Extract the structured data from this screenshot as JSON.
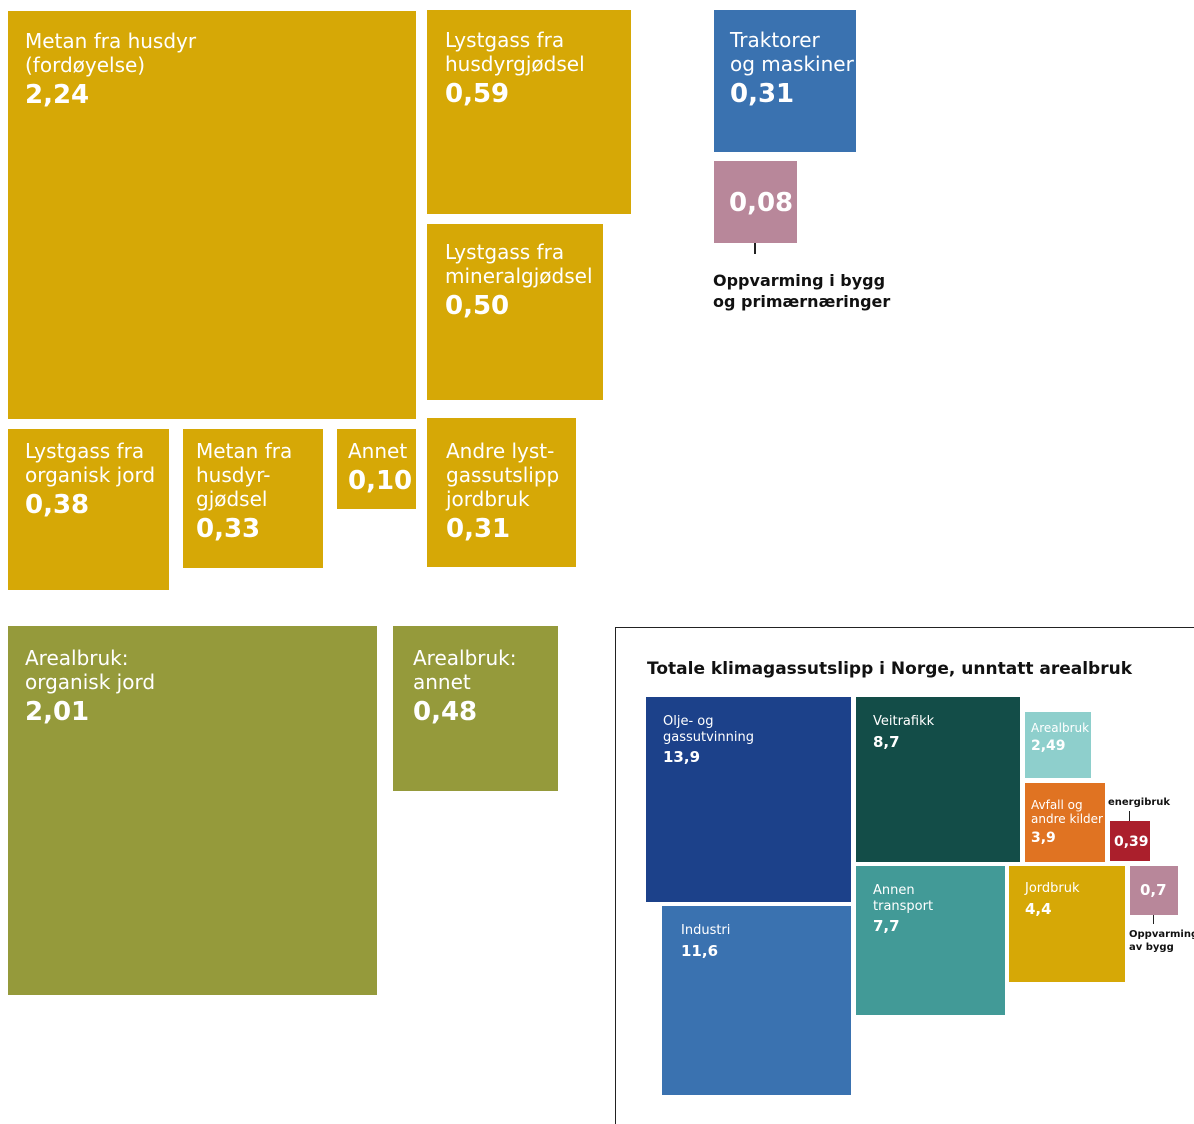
{
  "boxes": [
    {
      "label": [
        "Metan fra husdyr",
        "(fordøyelse)"
      ],
      "value": "2,24"
    },
    {
      "label": [
        "Lystgass fra",
        "husdyrgjødsel"
      ],
      "value": "0,59"
    },
    {
      "label": [
        "Lystgass fra",
        "mineralgjødsel"
      ],
      "value": "0,50"
    },
    {
      "label": [
        "Lystgass fra",
        "organisk jord"
      ],
      "value": "0,38"
    },
    {
      "label": [
        "Metan fra",
        "husdyr-",
        "gjødsel"
      ],
      "value": "0,33"
    },
    {
      "label": [
        "Annet"
      ],
      "value": "0,10"
    },
    {
      "label": [
        "Andre lyst-",
        "gassutslipp",
        "jordbruk"
      ],
      "value": "0,31"
    },
    {
      "label": [
        "Traktorer",
        "og maskiner"
      ],
      "value": "0,31"
    },
    {
      "label": [],
      "value": "0,08"
    },
    {
      "label": [
        "Arealbruk:",
        "organisk jord"
      ],
      "value": "2,01"
    },
    {
      "label": [
        "Arealbruk:",
        "annet"
      ],
      "value": "0,48"
    }
  ],
  "heating_label": [
    "Oppvarming i bygg",
    "og primærnæringer"
  ],
  "inset": {
    "title": "Totale klimagassutslipp i Norge, unntatt arealbruk",
    "boxes": [
      {
        "label": [
          "Olje- og",
          "gassutvinning"
        ],
        "value": "13,9"
      },
      {
        "label": [
          "Industri"
        ],
        "value": "11,6"
      },
      {
        "label": [
          "Veitrafikk"
        ],
        "value": "8,7"
      },
      {
        "label": [
          "Annen",
          "transport"
        ],
        "value": "7,7"
      },
      {
        "label": [
          "Arealbruk"
        ],
        "value": "2,49"
      },
      {
        "label": [
          "Avfall og",
          "andre kilder"
        ],
        "value": "3,9"
      },
      {
        "label": [],
        "value": "0,39"
      },
      {
        "label": [
          "Jordbruk"
        ],
        "value": "4,4"
      },
      {
        "label": [],
        "value": "0,7"
      }
    ],
    "energy_label": "energibruk",
    "heating_label": [
      "Oppvarming",
      "av bygg"
    ]
  }
}
